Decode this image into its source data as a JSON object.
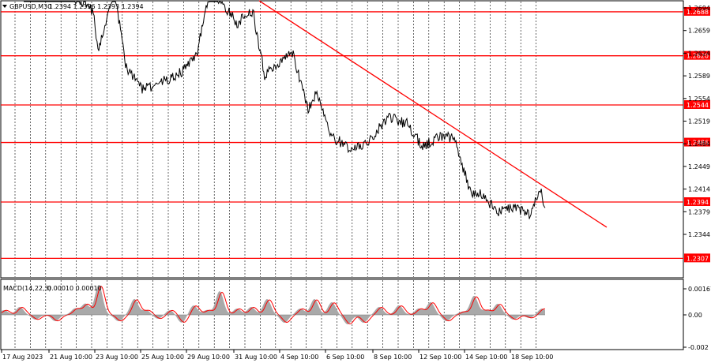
{
  "header": {
    "symbol": "GBPUSD,M30",
    "ohlc": "1.2394 1.2396 1.2393 1.2394"
  },
  "macd": {
    "label": "MACD(14,22,3)",
    "values": "0.00010 0.00010",
    "ticks": [
      "0.00167",
      "0.00",
      "-0.002"
    ]
  },
  "colors": {
    "level": "#ff0000",
    "trend": "#ff0000",
    "price": "#000000",
    "macd_hist": "#a9a9a9",
    "macd_signal": "#ff0000",
    "grid": "#000000"
  },
  "chart_data": {
    "type": "line",
    "price_ticks": [
      "1.2694",
      "1.2659",
      "1.2624",
      "1.2589",
      "1.2554",
      "1.2519",
      "1.2484",
      "1.2449",
      "1.2414",
      "1.2379",
      "1.2344"
    ],
    "levels": [
      "1.2688",
      "1.2620",
      "1.2544",
      "1.2486",
      "1.2394",
      "1.2307"
    ],
    "x_ticks": [
      "17 Aug 2023",
      "21 Aug 10:00",
      "23 Aug 10:00",
      "25 Aug 10:00",
      "29 Aug 10:00",
      "31 Aug 10:00",
      "4 Sep 10:00",
      "6 Sep 10:00",
      "8 Sep 10:00",
      "12 Sep 10:00",
      "14 Sep 10:00",
      "18 Sep 10:00"
    ],
    "ylim": [
      1.2282,
      1.2708
    ],
    "trendline": [
      {
        "x": "31 Aug 10:00",
        "y": 1.2705
      },
      {
        "x": "after 18 Sep 10:00",
        "y": 1.2355
      }
    ],
    "close_path": [
      {
        "x": "17 Aug 2023",
        "y": 1.2727
      },
      {
        "x": "21 Aug 10:00",
        "y": 1.2735
      },
      {
        "x": "23 Aug 10:00",
        "y": 1.269
      },
      {
        "x": "23 Aug 10:00",
        "y": 1.263
      },
      {
        "x": "23 Aug 10:00",
        "y": 1.272
      },
      {
        "x": "25 Aug 10:00",
        "y": 1.26
      },
      {
        "x": "25 Aug 10:00",
        "y": 1.257
      },
      {
        "x": "25 Aug 10:00",
        "y": 1.2575
      },
      {
        "x": "29 Aug 10:00",
        "y": 1.26
      },
      {
        "x": "29 Aug 10:00",
        "y": 1.2628
      },
      {
        "x": "29 Aug 10:00",
        "y": 1.27
      },
      {
        "x": "29 Aug 10:00",
        "y": 1.272
      },
      {
        "x": "31 Aug 10:00",
        "y": 1.267
      },
      {
        "x": "31 Aug 10:00",
        "y": 1.269
      },
      {
        "x": "31 Aug 10:00",
        "y": 1.259
      },
      {
        "x": "4 Sep 10:00",
        "y": 1.2625
      },
      {
        "x": "4 Sep 10:00",
        "y": 1.2535
      },
      {
        "x": "6 Sep 10:00",
        "y": 1.2565
      },
      {
        "x": "6 Sep 10:00",
        "y": 1.2495
      },
      {
        "x": "6 Sep 10:00",
        "y": 1.2475
      },
      {
        "x": "8 Sep 10:00",
        "y": 1.249
      },
      {
        "x": "8 Sep 10:00",
        "y": 1.2525
      },
      {
        "x": "8 Sep 10:00",
        "y": 1.2515
      },
      {
        "x": "12 Sep 10:00",
        "y": 1.248
      },
      {
        "x": "12 Sep 10:00",
        "y": 1.2495
      },
      {
        "x": "12 Sep 10:00",
        "y": 1.2495
      },
      {
        "x": "14 Sep 10:00",
        "y": 1.241
      },
      {
        "x": "14 Sep 10:00",
        "y": 1.2405
      },
      {
        "x": "14 Sep 10:00",
        "y": 1.238
      },
      {
        "x": "18 Sep 10:00",
        "y": 1.2385
      },
      {
        "x": "18 Sep 10:00",
        "y": 1.2375
      },
      {
        "x": "18 Sep 10:00",
        "y": 1.2412
      },
      {
        "x": "18 Sep 10:00",
        "y": 1.2385
      }
    ]
  }
}
